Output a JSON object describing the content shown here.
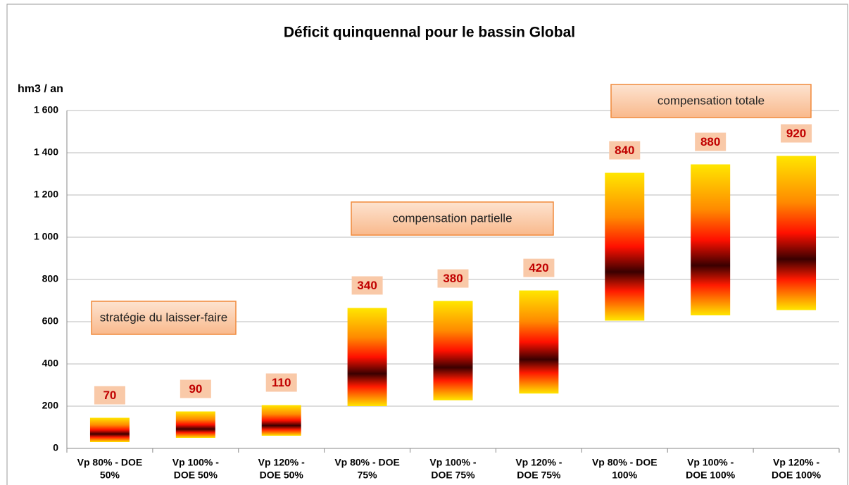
{
  "chart_data": {
    "type": "floating_bar",
    "title": "Déficit quinquennal pour le bassin Global",
    "y_axis_label": "hm3 / an",
    "categories": [
      [
        "Vp 80% - DOE",
        "50%"
      ],
      [
        "Vp 100% -",
        "DOE 50%"
      ],
      [
        "Vp 120% -",
        "DOE 50%"
      ],
      [
        "Vp 80% - DOE",
        "75%"
      ],
      [
        "Vp 100% -",
        "DOE 75%"
      ],
      [
        "Vp 120% -",
        "DOE 75%"
      ],
      [
        "Vp 80% - DOE",
        "100%"
      ],
      [
        "Vp 100% -",
        "DOE 100%"
      ],
      [
        "Vp 120% -",
        "DOE 100%"
      ]
    ],
    "low": [
      30,
      50,
      60,
      200,
      228,
      260,
      605,
      630,
      655
    ],
    "high": [
      145,
      175,
      205,
      665,
      698,
      748,
      1305,
      1345,
      1385
    ],
    "labels": [
      70,
      90,
      110,
      340,
      380,
      420,
      840,
      880,
      920
    ],
    "annotations": [
      "stratégie du laisser-faire",
      "compensation partielle",
      "compensation totale"
    ],
    "ylim": [
      0,
      1600
    ],
    "yticks": [
      0,
      200,
      400,
      600,
      800,
      {
        "value": 1000,
        "label": "1 000"
      },
      {
        "value": 1200,
        "label": "1 200"
      },
      {
        "value": 1400,
        "label": "1 400"
      },
      {
        "value": 1600,
        "label": "1 600"
      }
    ],
    "grid": true
  }
}
